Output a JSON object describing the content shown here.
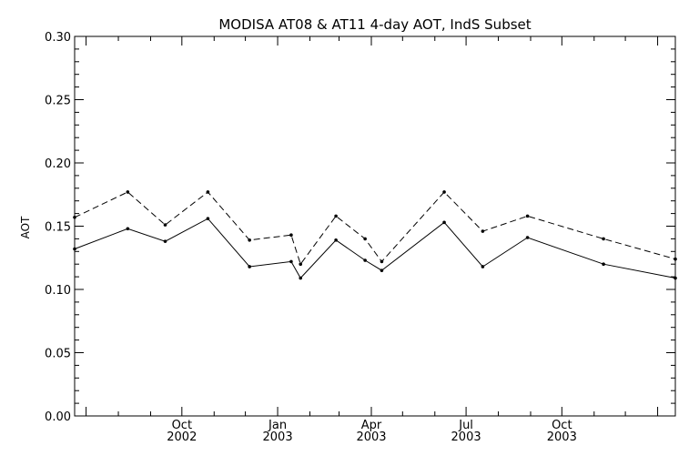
{
  "chart_data": {
    "type": "line",
    "title": "MODISA AT08 & AT11 4-day AOT, IndS Subset",
    "xlabel": "",
    "ylabel": "AOT",
    "xlim": [
      "2002-06-20",
      "2004-01-18"
    ],
    "ylim": [
      0.0,
      0.3
    ],
    "y_ticks": [
      "0.00",
      "0.05",
      "0.10",
      "0.15",
      "0.20",
      "0.25",
      "0.30"
    ],
    "x_ticks": [
      {
        "date": "2002-10-01",
        "month": "Oct",
        "year": "2002"
      },
      {
        "date": "2003-01-01",
        "month": "Jan",
        "year": "2003"
      },
      {
        "date": "2003-04-01",
        "month": "Apr",
        "year": "2003"
      },
      {
        "date": "2003-07-01",
        "month": "Jul",
        "year": "2003"
      },
      {
        "date": "2003-10-01",
        "month": "Oct",
        "year": "2003"
      }
    ],
    "grid": false,
    "legend": "none",
    "series": [
      {
        "style": "solid",
        "x": [
          "2002-06-20",
          "2002-08-10",
          "2002-09-15",
          "2002-10-26",
          "2002-12-05",
          "2003-01-14",
          "2003-01-23",
          "2003-02-26",
          "2003-03-26",
          "2003-04-11",
          "2003-06-10",
          "2003-07-17",
          "2003-08-29",
          "2003-11-10",
          "2004-01-18"
        ],
        "y": [
          0.132,
          0.148,
          0.138,
          0.156,
          0.118,
          0.122,
          0.109,
          0.139,
          0.123,
          0.115,
          0.153,
          0.118,
          0.141,
          0.12,
          0.109
        ]
      },
      {
        "style": "dashed",
        "x": [
          "2002-06-20",
          "2002-08-10",
          "2002-09-15",
          "2002-10-26",
          "2002-12-05",
          "2003-01-14",
          "2003-01-23",
          "2003-02-26",
          "2003-03-26",
          "2003-04-11",
          "2003-06-10",
          "2003-07-17",
          "2003-08-29",
          "2003-11-10",
          "2004-01-18"
        ],
        "y": [
          0.157,
          0.177,
          0.151,
          0.177,
          0.139,
          0.143,
          0.12,
          0.158,
          0.14,
          0.122,
          0.177,
          0.146,
          0.158,
          0.14,
          0.124
        ]
      }
    ]
  }
}
